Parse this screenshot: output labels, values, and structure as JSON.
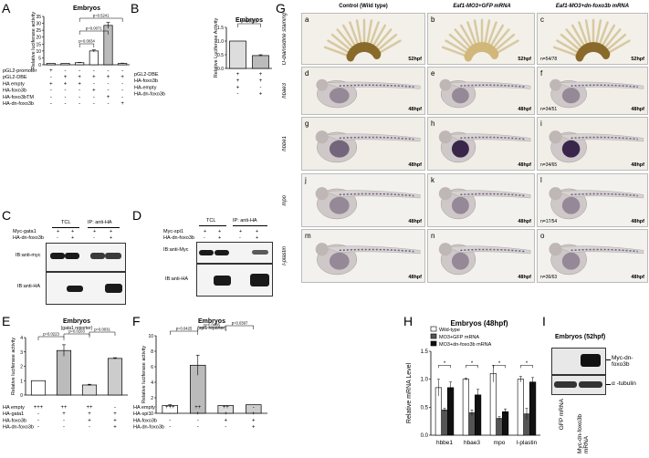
{
  "panels": {
    "A": {
      "label": "A",
      "title": "Embryos",
      "ylabel": "Relative luciferase activity",
      "pvalues": [
        "p=0.0034",
        "p=0.0071",
        "p=0.5241"
      ],
      "rows": [
        {
          "label": "pGL2-promoter",
          "marks": [
            "+",
            "-",
            "-",
            "-",
            "-",
            "-"
          ]
        },
        {
          "label": "pGL2-DBE",
          "marks": [
            "-",
            "+",
            "+",
            "+",
            "+",
            "+"
          ]
        },
        {
          "label": "HA empty",
          "marks": [
            "+",
            "+",
            "+",
            "-",
            "-",
            "-"
          ]
        },
        {
          "label": "HA-foxo3b",
          "marks": [
            "-",
            "-",
            "-",
            "+",
            "-",
            "-"
          ]
        },
        {
          "label": "HA-foxo3bTM",
          "marks": [
            "-",
            "-",
            "-",
            "-",
            "+",
            "-"
          ]
        },
        {
          "label": "HA-dn-foxo3b",
          "marks": [
            "-",
            "-",
            "-",
            "-",
            "-",
            "+"
          ]
        }
      ]
    },
    "B": {
      "label": "B",
      "title": "Embryos",
      "ylabel": "Relative Luciferase Activity",
      "pvalue": "p=0.0018",
      "rows": [
        {
          "label": "pGL2-DBE",
          "marks": [
            "+",
            "+"
          ]
        },
        {
          "label": "HA-foxo3b",
          "marks": [
            "+",
            "+"
          ]
        },
        {
          "label": "HA-empty",
          "marks": [
            "+",
            "-"
          ]
        },
        {
          "label": "HA-dn-foxo3b",
          "marks": [
            "-",
            "+"
          ]
        }
      ]
    },
    "C": {
      "label": "C",
      "tcl": "TCL",
      "ip": "IP: anti-HA",
      "rows": [
        {
          "label": "Myc-gata1",
          "marks": [
            "+",
            "+",
            "+",
            "+"
          ]
        },
        {
          "label": "HA-dn-foxo3b",
          "marks": [
            "-",
            "+",
            "-",
            "+"
          ]
        }
      ],
      "blots": [
        "IB:anti-myc",
        "IB:anti-HA"
      ]
    },
    "D": {
      "label": "D",
      "tcl": "TCL",
      "ip": "IP: anti-HA",
      "rows": [
        {
          "label": "Myc-spi1",
          "marks": [
            "+",
            "+",
            "+",
            "+"
          ]
        },
        {
          "label": "HA-dn-foxo3b",
          "marks": [
            "-",
            "+",
            "-",
            "+"
          ]
        }
      ],
      "blots": [
        "IB:anti-Myc",
        "IB:anti-HA"
      ]
    },
    "E": {
      "label": "E",
      "title": "Embryos",
      "subtitle": "(gata1 reporter)",
      "ylabel": "Relative luciferase activity",
      "pvalues": [
        "p=0.0223",
        "p=0.0103",
        "p=0.0031"
      ],
      "rows": [
        {
          "label": "HA empty",
          "marks": [
            "+++",
            "++",
            "++",
            "-"
          ]
        },
        {
          "label": "HA-gata1",
          "marks": [
            "-",
            "+",
            "+",
            "+"
          ]
        },
        {
          "label": "HA-foxo3b",
          "marks": [
            "-",
            "-",
            "+",
            "+"
          ]
        },
        {
          "label": "HA-dn-foxo3b",
          "marks": [
            "-",
            "-",
            "-",
            "+"
          ]
        }
      ]
    },
    "F": {
      "label": "F",
      "title": "Embryos",
      "subtitle": "(spi1 reporter)",
      "ylabel": "Relative luciferase activity",
      "pvalues": [
        "p=0.0425",
        "p=0.0486",
        "p=0.0397"
      ],
      "rows": [
        {
          "label": "HA empty",
          "marks": [
            "+++",
            "++",
            "++",
            "-"
          ]
        },
        {
          "label": "HA-spi1",
          "marks": [
            "-",
            "+",
            "+",
            "+"
          ]
        },
        {
          "label": "HA-foxo3b",
          "marks": [
            "-",
            "-",
            "+",
            "+"
          ]
        },
        {
          "label": "HA-dn-foxo3b",
          "marks": [
            "-",
            "-",
            "-",
            "+"
          ]
        }
      ]
    },
    "G": {
      "label": "G",
      "columns": [
        "Control (Wild type)",
        "Eaf1-MO3+GFP mRNA",
        "Eaf1-MO3+dn-foxo3b mRNA"
      ],
      "rows": [
        {
          "label": "O-dianisidine staining",
          "cells": [
            {
              "letter": "a",
              "stage": "52hpf",
              "n": ""
            },
            {
              "letter": "b",
              "stage": "52hpf",
              "n": ""
            },
            {
              "letter": "c",
              "stage": "52hpf",
              "n": "n=54/78"
            }
          ]
        },
        {
          "label": "hbae3",
          "cells": [
            {
              "letter": "d",
              "stage": "48hpf",
              "n": ""
            },
            {
              "letter": "e",
              "stage": "48hpf",
              "n": ""
            },
            {
              "letter": "f",
              "stage": "48hpf",
              "n": "n=34/51"
            }
          ]
        },
        {
          "label": "hbbe1",
          "cells": [
            {
              "letter": "g",
              "stage": "48hpf",
              "n": ""
            },
            {
              "letter": "h",
              "stage": "48hpf",
              "n": ""
            },
            {
              "letter": "i",
              "stage": "48hpf",
              "n": "n=34/65"
            }
          ]
        },
        {
          "label": "mpo",
          "cells": [
            {
              "letter": "j",
              "stage": "48hpf",
              "n": ""
            },
            {
              "letter": "k",
              "stage": "48hpf",
              "n": ""
            },
            {
              "letter": "l",
              "stage": "48hpf",
              "n": "n=17/54"
            }
          ]
        },
        {
          "label": "l-plastin",
          "cells": [
            {
              "letter": "m",
              "stage": "48hpf",
              "n": ""
            },
            {
              "letter": "n",
              "stage": "48hpf",
              "n": ""
            },
            {
              "letter": "o",
              "stage": "48hpf",
              "n": "n=36/63"
            }
          ]
        }
      ]
    },
    "H": {
      "label": "H",
      "title": "Embryos (48hpf)",
      "ylabel": "Relative mRNA Level",
      "legend": [
        "Wild-type",
        "MO3+GFP mRNA",
        "MO3+dn-foxo3b mRNA"
      ],
      "star": "*"
    },
    "I": {
      "label": "I",
      "title": "Embryos (52hpf)",
      "bands": [
        "Myc-dn-foxo3b",
        "α -tubulin"
      ],
      "lanes": [
        "GFP mRNA",
        "Myc-dn-foxo3b mRNA"
      ]
    }
  },
  "chart_data": [
    {
      "panel": "A",
      "type": "bar",
      "title": "Embryos",
      "ylabel": "Relative luciferase activity",
      "categories": [
        "1",
        "2",
        "3",
        "4",
        "5",
        "6"
      ],
      "values": [
        1,
        1,
        1.5,
        10,
        28.5,
        1
      ],
      "errors": [
        0,
        0,
        0.2,
        0.8,
        2.2,
        0.2
      ],
      "ylim": [
        0,
        35
      ],
      "yticks": [
        0,
        5,
        10,
        15,
        20,
        25,
        30,
        35
      ]
    },
    {
      "panel": "B",
      "type": "bar",
      "title": "Embryos",
      "ylabel": "Relative Luciferase Activity",
      "categories": [
        "1",
        "2"
      ],
      "values": [
        1.0,
        0.47
      ],
      "errors": [
        0,
        0.03
      ],
      "ylim": [
        0,
        1.5
      ],
      "yticks": [
        0.0,
        0.5,
        1.0,
        1.5
      ]
    },
    {
      "panel": "E",
      "type": "bar",
      "title": "Embryos",
      "ylabel": "Relative luciferase activity",
      "categories": [
        "1",
        "2",
        "3",
        "4"
      ],
      "values": [
        1.0,
        3.1,
        0.7,
        2.55
      ],
      "errors": [
        0,
        0.4,
        0.05,
        0.05
      ],
      "ylim": [
        0,
        4
      ],
      "yticks": [
        0,
        1,
        2,
        3,
        4
      ]
    },
    {
      "panel": "F",
      "type": "bar",
      "title": "Embryos",
      "ylabel": "Relative luciferase activity",
      "categories": [
        "1",
        "2",
        "3",
        "4"
      ],
      "values": [
        1.0,
        6.2,
        1.0,
        1.1
      ],
      "errors": [
        0.1,
        1.3,
        0,
        0
      ],
      "ylim": [
        0,
        10
      ],
      "yticks": [
        0,
        2,
        4,
        6,
        8,
        10
      ]
    },
    {
      "panel": "H",
      "type": "bar",
      "title": "Embryos (48hpf)",
      "ylabel": "Relative mRNA Level",
      "categories": [
        "hbbe1",
        "hbae3",
        "mpo",
        "l-plastin"
      ],
      "series": [
        {
          "name": "Wild-type",
          "values": [
            0.85,
            1.0,
            1.1,
            1.0
          ],
          "errors": [
            0.15,
            0.02,
            0.15,
            0.05
          ]
        },
        {
          "name": "MO3+GFP mRNA",
          "values": [
            0.45,
            0.4,
            0.3,
            0.38
          ],
          "errors": [
            0.03,
            0.05,
            0.03,
            0.1
          ]
        },
        {
          "name": "MO3+dn-foxo3b mRNA",
          "values": [
            0.85,
            0.72,
            0.42,
            0.95
          ],
          "errors": [
            0.1,
            0.1,
            0.05,
            0.08
          ]
        }
      ],
      "ylim": [
        0,
        1.5
      ],
      "yticks": [
        0.0,
        0.5,
        1.0,
        1.5
      ]
    }
  ]
}
